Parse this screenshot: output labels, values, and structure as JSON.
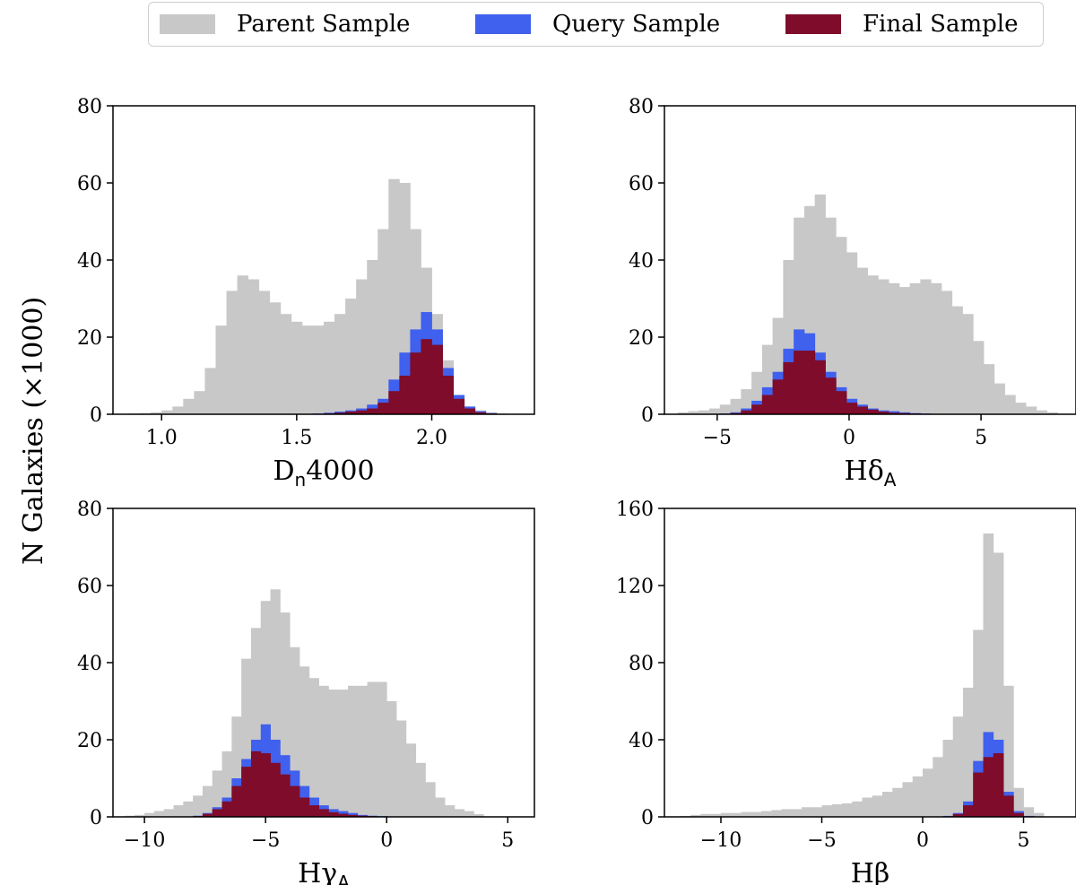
{
  "colors": {
    "parent": "#c8c8c8",
    "query": "#4060ee",
    "final": "#7e0c2a"
  },
  "legend": {
    "placement": "top",
    "items": [
      {
        "key": "parent",
        "label": "Parent Sample"
      },
      {
        "key": "query",
        "label": "Query Sample"
      },
      {
        "key": "final",
        "label": "Final Sample"
      }
    ]
  },
  "figure_ylabel": "N Galaxies (×1000)",
  "chart_data": [
    {
      "type": "bar",
      "id": "dn4000",
      "xlabel_main": "D",
      "xlabel_sub": "n",
      "xlabel_tail": "4000",
      "xlim": [
        0.82,
        2.38
      ],
      "ylim": [
        0,
        80
      ],
      "xticks": [
        1.0,
        1.5,
        2.0
      ],
      "xtick_labels": [
        "1.0",
        "1.5",
        "2.0"
      ],
      "yticks": [
        0,
        20,
        40,
        60,
        80
      ],
      "ytick_labels": [
        "0",
        "20",
        "40",
        "60",
        "80"
      ],
      "bin_start": 0.88,
      "bin_width": 0.04,
      "series": [
        {
          "name": "Parent Sample",
          "key": "parent",
          "values": [
            0.2,
            0.3,
            0.5,
            1,
            2,
            4,
            6,
            12,
            23,
            32,
            36,
            35,
            32,
            29,
            26,
            24,
            23,
            23,
            24,
            26,
            30,
            35,
            40,
            48,
            61,
            60,
            48,
            38,
            26,
            14,
            5,
            2,
            1,
            0.5,
            0.2
          ]
        },
        {
          "name": "Query Sample",
          "key": "query",
          "values": [
            0,
            0,
            0,
            0,
            0,
            0,
            0,
            0,
            0,
            0,
            0,
            0,
            0,
            0,
            0,
            0,
            0.1,
            0.2,
            0.4,
            0.7,
            1,
            1.5,
            2.5,
            4,
            9,
            16,
            22,
            26.5,
            22,
            12,
            5,
            2,
            0.8,
            0.3,
            0.1
          ]
        },
        {
          "name": "Final Sample",
          "key": "final",
          "values": [
            0,
            0,
            0,
            0,
            0,
            0,
            0,
            0,
            0,
            0,
            0,
            0,
            0,
            0,
            0,
            0,
            0,
            0.1,
            0.2,
            0.4,
            0.7,
            1,
            1.5,
            3,
            6,
            10,
            16,
            19.5,
            18,
            10,
            4,
            1.5,
            0.5,
            0.2,
            0
          ]
        }
      ]
    },
    {
      "type": "bar",
      "id": "hdelta",
      "xlabel_main": "Hδ",
      "xlabel_sub": "A",
      "xlabel_tail": "",
      "xlim": [
        -7,
        8.6
      ],
      "ylim": [
        0,
        80
      ],
      "xticks": [
        -5,
        0,
        5
      ],
      "xtick_labels": [
        "−5",
        "0",
        "5"
      ],
      "yticks": [
        0,
        20,
        40,
        60,
        80
      ],
      "ytick_labels": [
        "0",
        "20",
        "40",
        "60",
        "80"
      ],
      "bin_start": -6.5,
      "bin_width": 0.4,
      "series": [
        {
          "name": "Parent Sample",
          "key": "parent",
          "values": [
            0.5,
            0.8,
            1,
            1.5,
            2.5,
            4,
            6.5,
            11,
            18,
            25,
            40,
            51,
            54,
            57,
            51,
            46,
            42,
            38,
            36,
            35,
            34,
            33,
            34,
            35,
            34,
            32,
            28,
            26,
            19,
            13,
            8,
            5,
            3,
            2,
            1,
            0.5
          ]
        },
        {
          "name": "Query Sample",
          "key": "query",
          "values": [
            0,
            0,
            0,
            0,
            0.2,
            0.5,
            1.5,
            3.5,
            7,
            11,
            17,
            22,
            21,
            16,
            11,
            7,
            4,
            2.5,
            1.5,
            1,
            0.8,
            0.5,
            0.3,
            0.2,
            0.1,
            0,
            0,
            0,
            0,
            0,
            0,
            0,
            0,
            0,
            0,
            0
          ]
        },
        {
          "name": "Final Sample",
          "key": "final",
          "values": [
            0,
            0,
            0,
            0,
            0.1,
            0.3,
            1,
            2.5,
            5,
            9,
            13.5,
            16.5,
            16.5,
            14,
            9.5,
            6,
            3,
            2,
            1.2,
            0.7,
            0.4,
            0.3,
            0.2,
            0.1,
            0,
            0,
            0,
            0,
            0,
            0,
            0,
            0,
            0,
            0,
            0,
            0
          ]
        }
      ]
    },
    {
      "type": "bar",
      "id": "hgamma",
      "xlabel_main": "Hγ",
      "xlabel_sub": "A",
      "xlabel_tail": "",
      "xlim": [
        -11.3,
        6.1
      ],
      "ylim": [
        0,
        80
      ],
      "xticks": [
        -10,
        -5,
        0,
        5
      ],
      "xtick_labels": [
        "−10",
        "−5",
        "0",
        "5"
      ],
      "yticks": [
        0,
        20,
        40,
        60,
        80
      ],
      "ytick_labels": [
        "0",
        "20",
        "40",
        "60",
        "80"
      ],
      "bin_start": -10.8,
      "bin_width": 0.4,
      "series": [
        {
          "name": "Parent Sample",
          "key": "parent",
          "values": [
            0.3,
            0.5,
            1,
            1.5,
            2,
            3,
            4,
            5.5,
            8,
            12,
            17,
            26,
            41,
            49,
            56,
            59,
            53,
            44,
            39,
            36,
            34,
            33,
            33,
            34,
            34,
            35,
            35,
            30,
            25,
            19,
            14,
            9,
            5,
            3,
            2,
            1.5,
            0.7
          ]
        },
        {
          "name": "Query Sample",
          "key": "query",
          "values": [
            0,
            0,
            0,
            0,
            0,
            0,
            0,
            0.3,
            1,
            2.5,
            5,
            10,
            15,
            20,
            24,
            20,
            16,
            12,
            8,
            5,
            3,
            2,
            1.5,
            1,
            0.5,
            0.3,
            0.2,
            0.1,
            0,
            0,
            0,
            0,
            0,
            0,
            0,
            0,
            0
          ]
        },
        {
          "name": "Final Sample",
          "key": "final",
          "values": [
            0,
            0,
            0,
            0,
            0,
            0,
            0,
            0.2,
            0.8,
            2,
            4,
            8,
            13,
            17,
            16.5,
            14,
            11,
            8,
            5,
            3,
            2,
            1.2,
            0.8,
            0.5,
            0.3,
            0.2,
            0.1,
            0,
            0,
            0,
            0,
            0,
            0,
            0,
            0,
            0,
            0
          ]
        }
      ]
    },
    {
      "type": "bar",
      "id": "hbeta",
      "xlabel_main": "Hβ",
      "xlabel_sub": "",
      "xlabel_tail": "",
      "xlim": [
        -12.8,
        7.6
      ],
      "ylim": [
        0,
        160
      ],
      "xticks": [
        -10,
        -5,
        0,
        5
      ],
      "xtick_labels": [
        "−10",
        "−5",
        "0",
        "5"
      ],
      "yticks": [
        0,
        40,
        80,
        120,
        160
      ],
      "ytick_labels": [
        "0",
        "40",
        "80",
        "120",
        "160"
      ],
      "bin_start": -12,
      "bin_width": 0.5,
      "series": [
        {
          "name": "Parent Sample",
          "key": "parent",
          "values": [
            0.5,
            1,
            1.5,
            1.5,
            2,
            2,
            2.5,
            2.5,
            3,
            3.5,
            4,
            4,
            5,
            5,
            6,
            6.5,
            7,
            8,
            10,
            11,
            13,
            15,
            18,
            21,
            25,
            31,
            40,
            52,
            67,
            97,
            147,
            137,
            68,
            15,
            5,
            2
          ]
        },
        {
          "name": "Query Sample",
          "key": "query",
          "values": [
            0,
            0,
            0,
            0,
            0,
            0,
            0,
            0,
            0,
            0,
            0,
            0,
            0,
            0,
            0,
            0,
            0,
            0,
            0,
            0,
            0,
            0,
            0,
            0,
            0,
            0,
            0.5,
            2,
            8,
            29,
            44,
            40,
            13,
            3,
            0.5,
            0
          ]
        },
        {
          "name": "Final Sample",
          "key": "final",
          "values": [
            0,
            0,
            0,
            0,
            0,
            0,
            0,
            0,
            0,
            0,
            0,
            0,
            0,
            0,
            0,
            0,
            0,
            0,
            0,
            0,
            0,
            0,
            0,
            0,
            0,
            0,
            0.3,
            1.5,
            6,
            23,
            31,
            33,
            11,
            2,
            0.3,
            0
          ]
        }
      ]
    }
  ]
}
